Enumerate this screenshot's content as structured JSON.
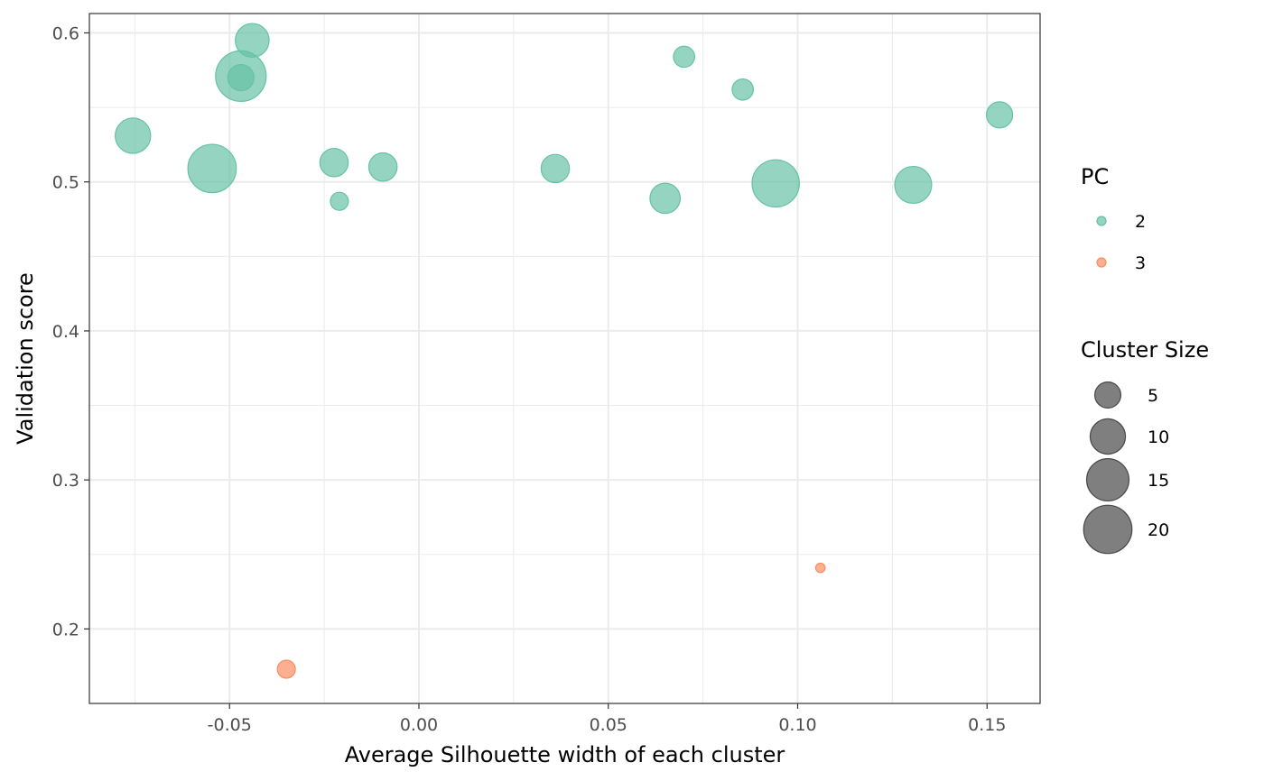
{
  "chart_data": {
    "type": "scatter",
    "title": "",
    "xlabel": "Average Silhouette width of each cluster",
    "ylabel": "Validation score",
    "xlim": [
      -0.087,
      0.164
    ],
    "ylim": [
      0.15,
      0.613
    ],
    "x_ticks": [
      -0.05,
      0.0,
      0.05,
      0.1,
      0.15
    ],
    "x_tick_labels": [
      "-0.05",
      "0.00",
      "0.05",
      "0.10",
      "0.15"
    ],
    "y_ticks": [
      0.2,
      0.3,
      0.4,
      0.5,
      0.6
    ],
    "y_tick_labels": [
      "0.2",
      "0.3",
      "0.4",
      "0.5",
      "0.6"
    ],
    "grid": true,
    "colors": {
      "2": "#66c2a5",
      "3": "#fc8d62"
    },
    "series": [
      {
        "name": "2",
        "points": [
          {
            "x": -0.0755,
            "y": 0.531,
            "size": 10
          },
          {
            "x": -0.0546,
            "y": 0.509,
            "size": 20
          },
          {
            "x": -0.047,
            "y": 0.571,
            "size": 22
          },
          {
            "x": -0.047,
            "y": 0.57,
            "size": 5
          },
          {
            "x": -0.044,
            "y": 0.595,
            "size": 9
          },
          {
            "x": -0.0224,
            "y": 0.513,
            "size": 6
          },
          {
            "x": -0.021,
            "y": 0.487,
            "size": 2
          },
          {
            "x": -0.0095,
            "y": 0.51,
            "size": 6
          },
          {
            "x": 0.036,
            "y": 0.509,
            "size": 6
          },
          {
            "x": 0.065,
            "y": 0.489,
            "size": 7
          },
          {
            "x": 0.07,
            "y": 0.584,
            "size": 3
          },
          {
            "x": 0.0855,
            "y": 0.562,
            "size": 3
          },
          {
            "x": 0.0942,
            "y": 0.499,
            "size": 19
          },
          {
            "x": 0.1305,
            "y": 0.498,
            "size": 11
          },
          {
            "x": 0.1533,
            "y": 0.545,
            "size": 5
          }
        ]
      },
      {
        "name": "3",
        "points": [
          {
            "x": -0.035,
            "y": 0.173,
            "size": 2
          },
          {
            "x": 0.106,
            "y": 0.241,
            "size": 0.3
          }
        ]
      }
    ],
    "legend": {
      "placement": "right",
      "color_title": "PC",
      "color_entries": [
        {
          "label": "2",
          "color": "#66c2a5"
        },
        {
          "label": "3",
          "color": "#fc8d62"
        }
      ],
      "size_title": "Cluster Size",
      "size_entries": [
        {
          "label": "5",
          "size": 5
        },
        {
          "label": "10",
          "size": 10
        },
        {
          "label": "15",
          "size": 15
        },
        {
          "label": "20",
          "size": 20
        }
      ]
    }
  }
}
